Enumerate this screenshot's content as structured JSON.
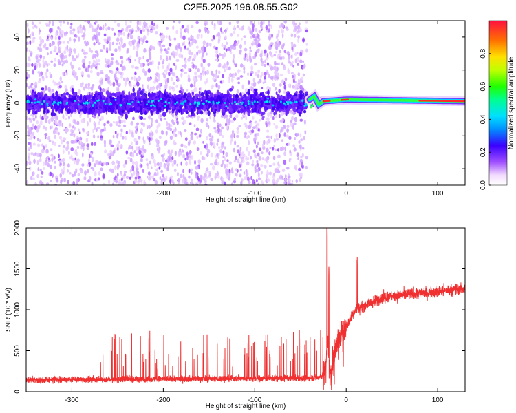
{
  "title": "C2E5.2025.196.08.55.G02",
  "colors": {
    "snr_line": "#f03030",
    "bright_band": "#ff2a2a",
    "spectrogram_purple": "#7a22ff"
  },
  "chart_data": [
    {
      "type": "heatmap",
      "name": "spectrogram",
      "xlabel": "Height of straight line (km)",
      "ylabel": "Frequency (Hz)",
      "xlim": [
        -350,
        130
      ],
      "ylim": [
        -50,
        50
      ],
      "xticks": [
        -300,
        -200,
        -100,
        0,
        100
      ],
      "yticks": [
        -40,
        -20,
        0,
        20,
        40
      ],
      "colorbar": {
        "label": "Normalized spectral amplitude",
        "range": [
          0,
          1
        ],
        "ticks": [
          0.0,
          0.2,
          0.4,
          0.6,
          0.8
        ],
        "tick_labels": [
          "0.0",
          "0.2",
          "0.4",
          "0.6",
          "0.8"
        ]
      },
      "features": {
        "noise_region_x": [
          -350,
          -43
        ],
        "center_band_frequency": 0,
        "transition_x": [
          -40,
          -25
        ],
        "tone_frequency_profile": [
          {
            "x": -40,
            "y": 2
          },
          {
            "x": -35,
            "y": 4
          },
          {
            "x": -30,
            "y": -1
          },
          {
            "x": -25,
            "y": 1
          },
          {
            "x": 0,
            "y": 2
          },
          {
            "x": 130,
            "y": 1
          }
        ]
      }
    },
    {
      "type": "line",
      "name": "snr",
      "xlabel": "Height of straight line (km)",
      "ylabel": "SNR (10 * v/v)",
      "xlim": [
        -350,
        130
      ],
      "ylim": [
        0,
        2000
      ],
      "xticks": [
        -300,
        -200,
        -100,
        0,
        100
      ],
      "yticks": [
        0,
        500,
        1000,
        1500,
        2000
      ],
      "series": [
        {
          "x": [
            -350,
            -300,
            -250,
            -200,
            -150,
            -100,
            -50,
            -30,
            -25,
            -22,
            -20,
            -18,
            -15,
            -10,
            -5,
            0,
            5,
            10,
            20,
            30,
            40,
            60,
            80,
            100,
            120,
            130
          ],
          "y": [
            140,
            150,
            150,
            155,
            160,
            160,
            165,
            170,
            200,
            400,
            650,
            200,
            350,
            600,
            700,
            800,
            900,
            1000,
            1050,
            1100,
            1150,
            1180,
            1200,
            1220,
            1250,
            1260
          ]
        }
      ]
    }
  ]
}
